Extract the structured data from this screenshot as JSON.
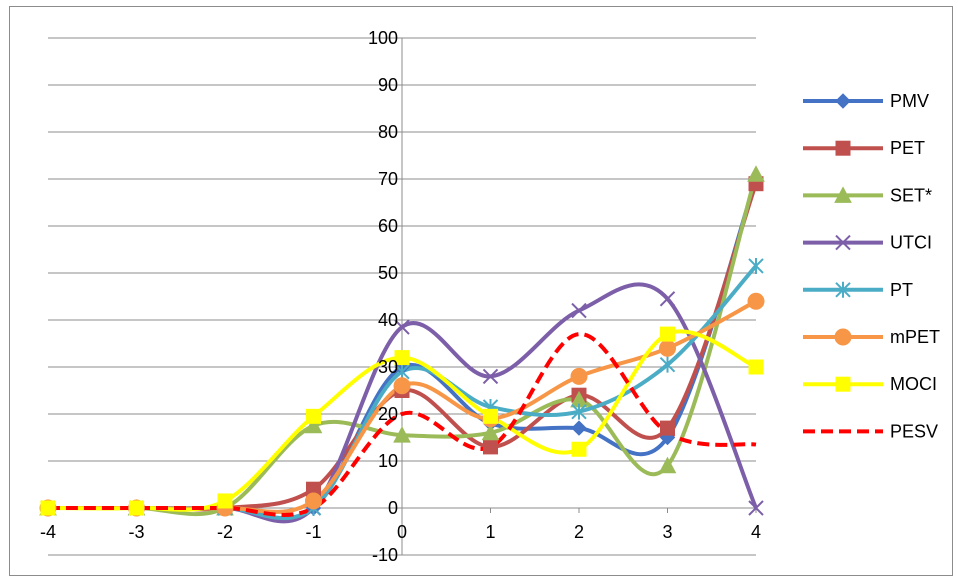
{
  "chart_data": {
    "type": "line",
    "title": "",
    "xlabel": "",
    "ylabel": "",
    "x": [
      -4,
      -3,
      -2,
      -1,
      0,
      1,
      2,
      3,
      4
    ],
    "xlim": [
      -4,
      4
    ],
    "ylim": [
      -10,
      100
    ],
    "y_ticks": [
      -10,
      0,
      10,
      20,
      30,
      40,
      50,
      60,
      70,
      80,
      90,
      100
    ],
    "x_ticks": [
      -4,
      -3,
      -2,
      -1,
      0,
      1,
      2,
      3,
      4
    ],
    "grid": "horizontal",
    "smoothed": true,
    "legend_position": "right",
    "series": [
      {
        "name": "PMV",
        "color": "#4472C4",
        "marker": "diamond",
        "dashed": false,
        "values": [
          0,
          0,
          0,
          0,
          30,
          18,
          17,
          15,
          70
        ]
      },
      {
        "name": "PET",
        "color": "#C0504D",
        "marker": "square",
        "dashed": false,
        "values": [
          0,
          0,
          0,
          4,
          25,
          13,
          24,
          17,
          69
        ]
      },
      {
        "name": "SET*",
        "color": "#9BBB59",
        "marker": "triangle",
        "dashed": false,
        "values": [
          0,
          0,
          0,
          17.5,
          15.5,
          16,
          23,
          9,
          71
        ]
      },
      {
        "name": "UTCI",
        "color": "#7C5FA8",
        "marker": "x",
        "dashed": false,
        "values": [
          0,
          0,
          0,
          0,
          38.5,
          28,
          42,
          44.5,
          0
        ]
      },
      {
        "name": "PT",
        "color": "#4BACC6",
        "marker": "star",
        "dashed": false,
        "values": [
          0,
          0,
          0,
          0,
          29,
          21.5,
          20.5,
          30.5,
          51.5
        ]
      },
      {
        "name": "mPET",
        "color": "#F79646",
        "marker": "circle",
        "dashed": false,
        "values": [
          0,
          0,
          0,
          1.5,
          26,
          19,
          28,
          34,
          44
        ]
      },
      {
        "name": "MOCI",
        "color": "#FFFF00",
        "marker": "square",
        "dashed": false,
        "values": [
          0,
          0,
          1.5,
          19.5,
          32,
          19.5,
          12.5,
          37,
          30
        ]
      },
      {
        "name": "PESV",
        "color": "#FF0000",
        "marker": "none",
        "dashed": true,
        "values": [
          0,
          0,
          0,
          0,
          20,
          13,
          37,
          16,
          13.5
        ]
      }
    ]
  }
}
